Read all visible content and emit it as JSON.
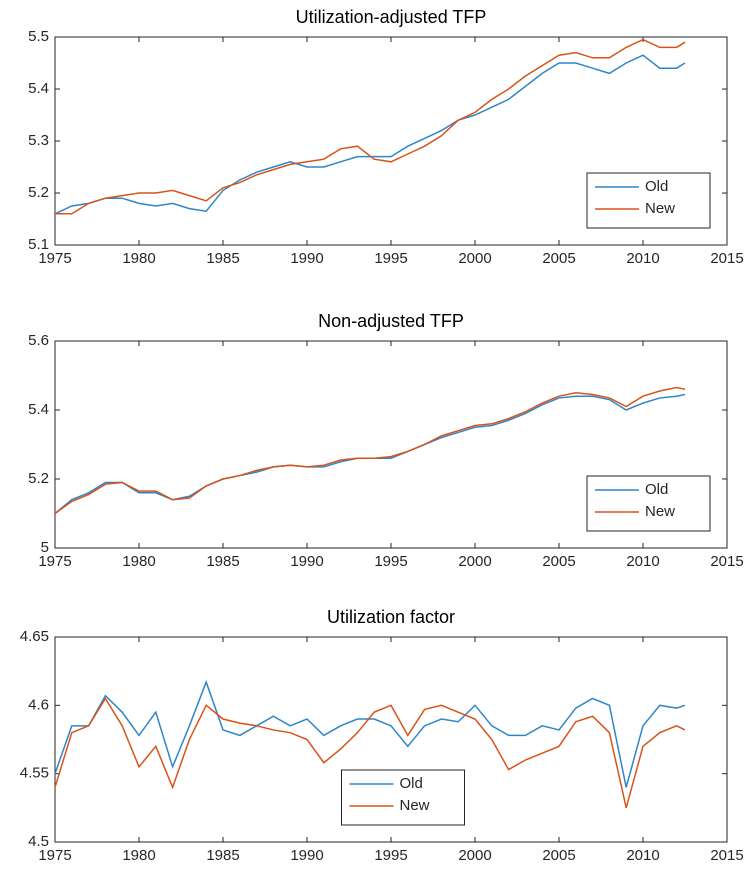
{
  "chart_data": [
    {
      "type": "line",
      "title": "Utilization-adjusted TFP",
      "x": [
        1975,
        1976,
        1977,
        1978,
        1979,
        1980,
        1981,
        1982,
        1983,
        1984,
        1985,
        1986,
        1987,
        1988,
        1989,
        1990,
        1991,
        1992,
        1993,
        1994,
        1995,
        1996,
        1997,
        1998,
        1999,
        2000,
        2001,
        2002,
        2003,
        2004,
        2005,
        2006,
        2007,
        2008,
        2009,
        2010,
        2011,
        2012,
        2012.5
      ],
      "series": [
        {
          "name": "Old",
          "color": "#2e86c8",
          "values": [
            5.16,
            5.175,
            5.18,
            5.19,
            5.19,
            5.18,
            5.175,
            5.18,
            5.17,
            5.165,
            5.205,
            5.225,
            5.24,
            5.25,
            5.26,
            5.25,
            5.25,
            5.26,
            5.27,
            5.27,
            5.27,
            5.29,
            5.305,
            5.32,
            5.34,
            5.35,
            5.365,
            5.38,
            5.405,
            5.43,
            5.45,
            5.45,
            5.44,
            5.43,
            5.45,
            5.465,
            5.44,
            5.44,
            5.45
          ]
        },
        {
          "name": "New",
          "color": "#d95319",
          "values": [
            5.16,
            5.16,
            5.18,
            5.19,
            5.195,
            5.2,
            5.2,
            5.205,
            5.195,
            5.185,
            5.21,
            5.22,
            5.235,
            5.245,
            5.255,
            5.26,
            5.265,
            5.285,
            5.29,
            5.265,
            5.26,
            5.275,
            5.29,
            5.31,
            5.34,
            5.355,
            5.38,
            5.4,
            5.425,
            5.445,
            5.465,
            5.47,
            5.46,
            5.46,
            5.48,
            5.495,
            5.48,
            5.48,
            5.49
          ]
        }
      ],
      "xlim": [
        1975,
        2015
      ],
      "xticks": [
        1975,
        1980,
        1985,
        1990,
        1995,
        2000,
        2005,
        2010,
        2015
      ],
      "ylim": [
        5.1,
        5.5
      ],
      "yticks": [
        5.1,
        5.2,
        5.3,
        5.4,
        5.5
      ],
      "legend": "lower right"
    },
    {
      "type": "line",
      "title": "Non-adjusted TFP",
      "x": [
        1975,
        1976,
        1977,
        1978,
        1979,
        1980,
        1981,
        1982,
        1983,
        1984,
        1985,
        1986,
        1987,
        1988,
        1989,
        1990,
        1991,
        1992,
        1993,
        1994,
        1995,
        1996,
        1997,
        1998,
        1999,
        2000,
        2001,
        2002,
        2003,
        2004,
        2005,
        2006,
        2007,
        2008,
        2009,
        2010,
        2011,
        2012,
        2012.5
      ],
      "series": [
        {
          "name": "Old",
          "color": "#2e86c8",
          "values": [
            5.1,
            5.14,
            5.16,
            5.19,
            5.19,
            5.16,
            5.16,
            5.14,
            5.15,
            5.18,
            5.2,
            5.21,
            5.22,
            5.235,
            5.24,
            5.235,
            5.235,
            5.25,
            5.26,
            5.26,
            5.26,
            5.28,
            5.3,
            5.32,
            5.335,
            5.35,
            5.355,
            5.37,
            5.39,
            5.415,
            5.435,
            5.44,
            5.44,
            5.43,
            5.4,
            5.42,
            5.435,
            5.44,
            5.445
          ]
        },
        {
          "name": "New",
          "color": "#d95319",
          "values": [
            5.1,
            5.135,
            5.155,
            5.185,
            5.19,
            5.165,
            5.165,
            5.14,
            5.145,
            5.18,
            5.2,
            5.21,
            5.225,
            5.235,
            5.24,
            5.235,
            5.24,
            5.255,
            5.26,
            5.26,
            5.265,
            5.28,
            5.3,
            5.325,
            5.34,
            5.355,
            5.36,
            5.375,
            5.395,
            5.42,
            5.44,
            5.45,
            5.445,
            5.435,
            5.41,
            5.44,
            5.455,
            5.465,
            5.46
          ]
        }
      ],
      "xlim": [
        1975,
        2015
      ],
      "xticks": [
        1975,
        1980,
        1985,
        1990,
        1995,
        2000,
        2005,
        2010,
        2015
      ],
      "ylim": [
        5,
        5.6
      ],
      "yticks": [
        5,
        5.2,
        5.4,
        5.6
      ],
      "legend": "lower right"
    },
    {
      "type": "line",
      "title": "Utilization factor",
      "x": [
        1975,
        1976,
        1977,
        1978,
        1979,
        1980,
        1981,
        1982,
        1983,
        1984,
        1985,
        1986,
        1987,
        1988,
        1989,
        1990,
        1991,
        1992,
        1993,
        1994,
        1995,
        1996,
        1997,
        1998,
        1999,
        2000,
        2001,
        2002,
        2003,
        2004,
        2005,
        2006,
        2007,
        2008,
        2009,
        2010,
        2011,
        2012,
        2012.5
      ],
      "series": [
        {
          "name": "Old",
          "color": "#2e86c8",
          "values": [
            4.55,
            4.585,
            4.585,
            4.607,
            4.595,
            4.578,
            4.595,
            4.555,
            4.585,
            4.617,
            4.582,
            4.578,
            4.585,
            4.592,
            4.585,
            4.59,
            4.578,
            4.585,
            4.59,
            4.59,
            4.585,
            4.57,
            4.585,
            4.59,
            4.588,
            4.6,
            4.585,
            4.578,
            4.578,
            4.585,
            4.582,
            4.598,
            4.605,
            4.6,
            4.54,
            4.585,
            4.6,
            4.598,
            4.6
          ]
        },
        {
          "name": "New",
          "color": "#d95319",
          "values": [
            4.54,
            4.58,
            4.585,
            4.605,
            4.585,
            4.555,
            4.57,
            4.54,
            4.575,
            4.6,
            4.59,
            4.587,
            4.585,
            4.582,
            4.58,
            4.575,
            4.558,
            4.568,
            4.58,
            4.595,
            4.6,
            4.578,
            4.597,
            4.6,
            4.595,
            4.59,
            4.575,
            4.553,
            4.56,
            4.565,
            4.57,
            4.588,
            4.592,
            4.58,
            4.525,
            4.57,
            4.58,
            4.585,
            4.582
          ]
        }
      ],
      "xlim": [
        1975,
        2015
      ],
      "xticks": [
        1975,
        1980,
        1985,
        1990,
        1995,
        2000,
        2005,
        2010,
        2015
      ],
      "ylim": [
        4.5,
        4.65
      ],
      "yticks": [
        4.5,
        4.55,
        4.6,
        4.65
      ],
      "legend": "lower center"
    }
  ]
}
